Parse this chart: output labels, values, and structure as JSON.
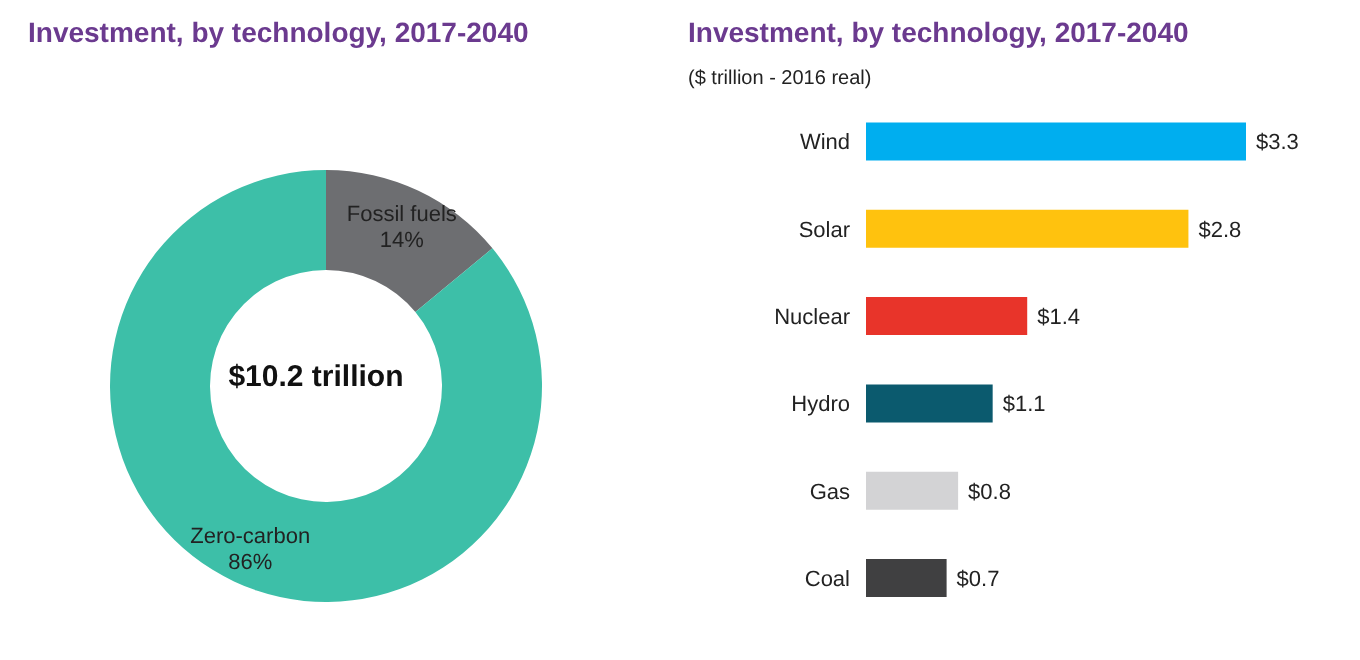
{
  "chart_data": [
    {
      "type": "donut",
      "title": "Investment, by technology, 2017-2040",
      "categories": [
        "Fossil fuels",
        "Zero-carbon"
      ],
      "values": [
        14,
        86
      ],
      "value_labels": [
        "14%",
        "86%"
      ],
      "colors": [
        "#6d6e71",
        "#3dbfa8"
      ],
      "annotations": [
        "$10.2 trillion"
      ],
      "legend": false
    },
    {
      "type": "bar",
      "orientation": "horizontal",
      "title": "Investment, by technology, 2017-2040",
      "subtitle": "($ trillion - 2016 real)",
      "categories": [
        "Wind",
        "Solar",
        "Nuclear",
        "Hydro",
        "Gas",
        "Coal"
      ],
      "values": [
        3.3,
        2.8,
        1.4,
        1.1,
        0.8,
        0.7
      ],
      "value_labels": [
        "$3.3",
        "$2.8",
        "$1.4",
        "$1.1",
        "$0.8",
        "$0.7"
      ],
      "colors": [
        "#00aeef",
        "#ffc20e",
        "#e8342a",
        "#0b5a6e",
        "#d3d3d5",
        "#404041"
      ],
      "legend": false,
      "grid": false
    }
  ]
}
